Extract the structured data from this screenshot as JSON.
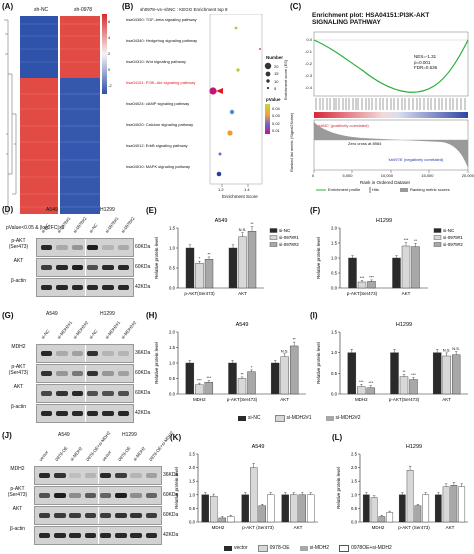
{
  "panels": {
    "A": {
      "letter": "(A)",
      "col1": "sh-NC",
      "col2": "sh-0978",
      "scale_ticks": [
        "6",
        "4",
        "2",
        "0",
        "-2"
      ],
      "caption": "pValue<0.05 & |log2FC|>1"
    },
    "B": {
      "letter": "(B)",
      "title": "sh0978–vs–shNC : KEGG Enrichment top 8",
      "xlabel": "Enrichment Score",
      "terms": [
        "hsa04350: TGF–beta signaling pathway",
        "hsa04340: Hedgehog signaling pathway",
        "hsa04310: Wnt signaling pathway",
        "hsa04151: PI3K–Akt signaling pathway",
        "hsa04024: cAMP signaling pathway",
        "hsa04020: Calcium signaling pathway",
        "hsa04012: ErbB signaling pathway",
        "hsa04010: MAPK signaling pathway"
      ],
      "highlight_term": "hsa04151: PI3K–Akt signaling pathway",
      "highlight_color": "#e0191f",
      "legend_number_title": "Number",
      "legend_numbers": [
        "20",
        "15",
        "10",
        "5"
      ],
      "legend_pvalue_title": "pValue",
      "legend_pvalues": [
        "0.04",
        "0.03",
        "0.02",
        "0.01"
      ],
      "xticks": [
        "1.2",
        "1.4"
      ]
    },
    "C": {
      "letter": "(C)",
      "title": "Enrichment plot: HSA04151:PI3K-AKT SIGNALING PATHWAY",
      "nes": "NES=-1.31",
      "p": "p=0.001",
      "fdr": "FDR=0.536",
      "ylabel_top": "Enrichment score (ES)",
      "ylabel_bottom": "Ranked list metric (Signal2Noise)",
      "xlabel": "Rank in Ordered Dataset",
      "legend": [
        "Enrichment profile",
        "Hits",
        "Ranking metric scores"
      ],
      "annot_pos": "'shNC' (positively correlated)",
      "annot_zero": "Zero cross at 8984",
      "annot_neg": "'sh0978' (negatively correlated)",
      "xticks": [
        "0",
        "5,000",
        "10,000",
        "15,000",
        "20,000"
      ],
      "es_ticks": [
        "0.0",
        "-0.1",
        "-0.2",
        "-0.3",
        "-0.4"
      ]
    },
    "D": {
      "letter": "(D)",
      "cell1": "A549",
      "cell2": "H1299",
      "lanes": [
        "si-NC",
        "si-0978#1",
        "si-0978#2",
        "si-NC",
        "si-0978#1",
        "si-0978#2"
      ],
      "rows": [
        "p-AKT\n(Ser473)",
        "AKT",
        "β-actin"
      ],
      "sizes": [
        "60KDa",
        "60KDa",
        "42KDa"
      ]
    },
    "E": {
      "letter": "(E)",
      "title": "A549",
      "ylabel": "Relative protein level",
      "groups": [
        "p-AKT(Ser473)",
        "AKT"
      ],
      "legend": [
        "si-NC",
        "si-0978#1",
        "si-0978#2"
      ],
      "yticks": [
        "0.0",
        "0.5",
        "1.0",
        "1.5"
      ],
      "values": [
        [
          1.0,
          0.62,
          0.72
        ],
        [
          1.0,
          1.28,
          1.42
        ]
      ],
      "sig": [
        [
          "",
          "*",
          "**"
        ],
        [
          "",
          "N.S.",
          "**"
        ]
      ]
    },
    "F": {
      "letter": "(F)",
      "title": "H1299",
      "ylabel": "Relative protein level",
      "groups": [
        "p-AKT(Ser473)",
        "AKT"
      ],
      "legend": [
        "si-NC",
        "si-0978#1",
        "si-0978#2"
      ],
      "yticks": [
        "0.0",
        "0.5",
        "1.0",
        "1.5",
        "2.0"
      ],
      "values": [
        [
          1.0,
          0.2,
          0.22
        ],
        [
          1.0,
          1.4,
          1.38
        ]
      ],
      "sig": [
        [
          "",
          "***",
          "***"
        ],
        [
          "",
          "***",
          "**"
        ]
      ]
    },
    "G": {
      "letter": "(G)",
      "cell1": "A549",
      "cell2": "H1299",
      "lanes": [
        "si-NC",
        "si-MDH2#1",
        "si-MDH2#2",
        "si-NC",
        "si-MDH2#1",
        "si-MDH2#2"
      ],
      "rows": [
        "MDH2",
        "p-AKT\n(Ser473)",
        "AKT",
        "β-actin"
      ],
      "sizes": [
        "36KDa",
        "60KDa",
        "60KDa",
        "42KDa"
      ]
    },
    "H": {
      "letter": "(H)",
      "title": "A549",
      "ylabel": "Relative protein level",
      "groups": [
        "MDH2",
        "p-AKT(Ser473)",
        "AKT"
      ],
      "yticks": [
        "0.0",
        "0.5",
        "1.0",
        "1.5",
        "2.0"
      ],
      "values": [
        [
          1.0,
          0.3,
          0.38
        ],
        [
          1.0,
          0.5,
          0.72
        ],
        [
          1.0,
          1.2,
          1.55
        ]
      ],
      "sig": [
        [
          "",
          "***",
          "***"
        ],
        [
          "",
          "**",
          "*"
        ],
        [
          "",
          "N.S.",
          "**"
        ]
      ]
    },
    "I": {
      "letter": "(I)",
      "title": "H1299",
      "ylabel": "Relative protein level",
      "groups": [
        "MDH2",
        "p-AKT(Ser473)",
        "AKT"
      ],
      "yticks": [
        "0.0",
        "0.5",
        "1.0",
        "1.5"
      ],
      "values": [
        [
          1.0,
          0.18,
          0.15
        ],
        [
          1.0,
          0.42,
          0.35
        ],
        [
          1.0,
          0.92,
          0.95
        ]
      ],
      "sig": [
        [
          "",
          "***",
          "***"
        ],
        [
          "",
          "**",
          "***"
        ],
        [
          "",
          "N.S.",
          "N.S."
        ]
      ]
    },
    "HI_legend": [
      "si-NC",
      "si-MDH2#1",
      "si-MDH2#2"
    ],
    "J": {
      "letter": "(J)",
      "cell1": "A549",
      "cell2": "H1299",
      "lanes": [
        "vector",
        "0978-OE",
        "si-MDH2",
        "0978-OE+si-MDH2",
        "vector",
        "0978-OE",
        "si-MDH2",
        "0978-OE+si-MDH2"
      ],
      "rows": [
        "MDH2",
        "p-AKT\n(Ser473)",
        "AKT",
        "β-actin"
      ],
      "sizes": [
        "36KDa",
        "60KDa",
        "60KDa",
        "42KDa"
      ]
    },
    "K": {
      "letter": "(K)",
      "title": "A549",
      "ylabel": "Relative protein level",
      "groups": [
        "MDH2",
        "p-AKT (Ser473)",
        "AKT"
      ],
      "yticks": [
        "0.0",
        "0.5",
        "1.0",
        "1.5",
        "2.0",
        "2.5"
      ],
      "values": [
        [
          1.0,
          0.95,
          0.15,
          0.2
        ],
        [
          1.0,
          2.0,
          0.6,
          1.0
        ],
        [
          1.0,
          1.0,
          1.0,
          1.0
        ]
      ]
    },
    "L": {
      "letter": "(L)",
      "title": "H1299",
      "ylabel": "Relative protein level",
      "groups": [
        "MDH2",
        "p-AKT (Ser473)",
        "AKT"
      ],
      "yticks": [
        "0.0",
        "0.5",
        "1.0",
        "1.5",
        "2.0",
        "2.5"
      ],
      "values": [
        [
          1.0,
          0.9,
          0.2,
          0.35
        ],
        [
          1.0,
          1.9,
          0.6,
          1.0
        ],
        [
          1.0,
          1.3,
          1.35,
          1.3
        ]
      ]
    },
    "KL_legend": [
      "vector",
      "0978-OE",
      "si-MDH2",
      "0978OE+si-MDH2"
    ]
  },
  "colors": {
    "black": "#2a2a2a",
    "grey": "#a8a8a8",
    "light": "#d8d8d8",
    "white": "#ffffff",
    "heat_red": "#e23a3a",
    "heat_blue": "#2e4fa8",
    "heat_white": "#f4f4f4"
  }
}
